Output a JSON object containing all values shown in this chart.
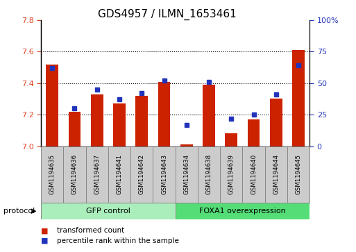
{
  "title": "GDS4957 / ILMN_1653461",
  "samples": [
    "GSM1194635",
    "GSM1194636",
    "GSM1194637",
    "GSM1194641",
    "GSM1194642",
    "GSM1194643",
    "GSM1194634",
    "GSM1194638",
    "GSM1194639",
    "GSM1194640",
    "GSM1194644",
    "GSM1194645"
  ],
  "transformed_count": [
    7.52,
    7.22,
    7.33,
    7.27,
    7.32,
    7.41,
    7.01,
    7.39,
    7.08,
    7.17,
    7.3,
    7.61
  ],
  "percentile_rank": [
    62,
    30,
    45,
    37,
    42,
    52,
    17,
    51,
    22,
    25,
    41,
    64
  ],
  "ylim": [
    7.0,
    7.8
  ],
  "yticks": [
    7.0,
    7.2,
    7.4,
    7.6,
    7.8
  ],
  "right_yticks": [
    0,
    25,
    50,
    75,
    100
  ],
  "right_ylabels": [
    "0",
    "25",
    "50",
    "75",
    "100%"
  ],
  "bar_color": "#CC2200",
  "dot_color": "#2233BB",
  "bar_width": 0.55,
  "groups": [
    {
      "label": "GFP control",
      "start": 0,
      "end": 6,
      "color": "#AAEEBB"
    },
    {
      "label": "FOXA1 overexpression",
      "start": 6,
      "end": 12,
      "color": "#55DD77"
    }
  ],
  "protocol_label": "protocol",
  "legend_items": [
    {
      "label": "transformed count",
      "color": "#CC2200"
    },
    {
      "label": "percentile rank within the sample",
      "color": "#2233BB"
    }
  ],
  "grid_color": "black",
  "title_fontsize": 11,
  "tick_fontsize": 8,
  "ylabel_color_left": "#DD4422",
  "ylabel_color_right": "#2233BB",
  "sample_box_color": "#CCCCCC",
  "sample_box_edge": "#888888"
}
